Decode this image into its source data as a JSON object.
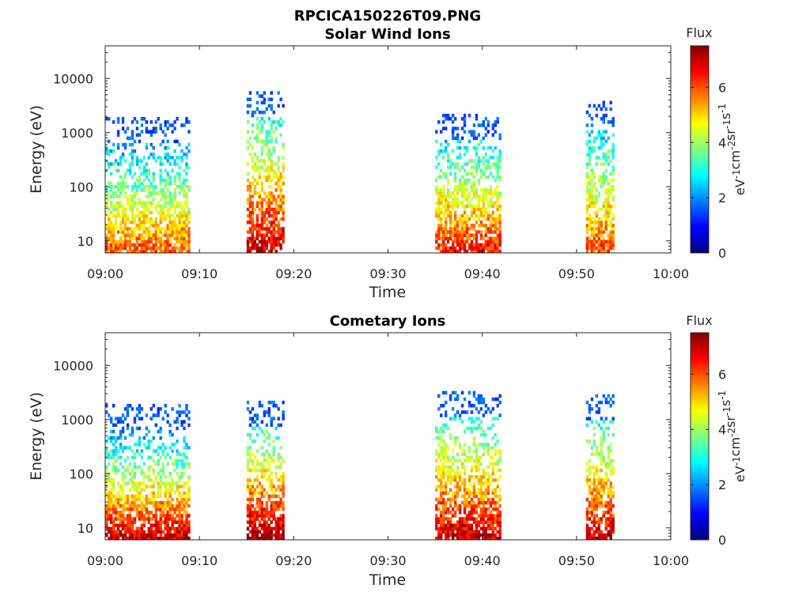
{
  "figure_title": "RPCICA150226T09.PNG",
  "colorbar": {
    "title": "Flux",
    "unit_parts": [
      "eV",
      "-1",
      "cm",
      "-2",
      "sr",
      "-1",
      "s",
      "-1"
    ],
    "ticks": [
      "0",
      "2",
      "4",
      "6"
    ],
    "range": [
      0,
      7.5
    ],
    "colormap": "jet"
  },
  "chart_data": [
    {
      "type": "heatmap",
      "title": "Solar Wind Ions",
      "xlabel": "Time",
      "ylabel": "Energy (eV)",
      "yscale": "log",
      "xlim": [
        "09:00",
        "10:00"
      ],
      "ylim": [
        6,
        40000
      ],
      "x_ticks": [
        "09:00",
        "09:10",
        "09:20",
        "09:30",
        "09:40",
        "09:50",
        "10:00"
      ],
      "y_ticks": [
        "10",
        "100",
        "1000",
        "10000"
      ],
      "grid": false,
      "bursts": [
        {
          "start": "09:00",
          "end": "09:09",
          "low_flux": 6.0,
          "high_flux": 2.0,
          "max_energy": 600
        },
        {
          "start": "09:15",
          "end": "09:19",
          "low_flux": 7.0,
          "high_flux": 3.0,
          "max_energy": 1700
        },
        {
          "start": "09:35",
          "end": "09:42",
          "low_flux": 6.5,
          "high_flux": 2.5,
          "max_energy": 700
        },
        {
          "start": "09:51",
          "end": "09:54",
          "low_flux": 6.0,
          "high_flux": 2.5,
          "max_energy": 1200
        }
      ]
    },
    {
      "type": "heatmap",
      "title": "Cometary Ions",
      "xlabel": "Time",
      "ylabel": "Energy (eV)",
      "yscale": "log",
      "xlim": [
        "09:00",
        "10:00"
      ],
      "ylim": [
        6,
        40000
      ],
      "x_ticks": [
        "09:00",
        "09:10",
        "09:20",
        "09:30",
        "09:40",
        "09:50",
        "10:00"
      ],
      "y_ticks": [
        "10",
        "100",
        "1000",
        "10000"
      ],
      "grid": false,
      "bursts": [
        {
          "start": "09:00",
          "end": "09:09",
          "low_flux": 7.0,
          "high_flux": 2.0,
          "max_energy": 600
        },
        {
          "start": "09:15",
          "end": "09:19",
          "low_flux": 7.3,
          "high_flux": 3.0,
          "max_energy": 650
        },
        {
          "start": "09:35",
          "end": "09:42",
          "low_flux": 7.0,
          "high_flux": 3.0,
          "max_energy": 1000
        },
        {
          "start": "09:51",
          "end": "09:54",
          "low_flux": 7.0,
          "high_flux": 3.0,
          "max_energy": 900
        }
      ]
    }
  ]
}
